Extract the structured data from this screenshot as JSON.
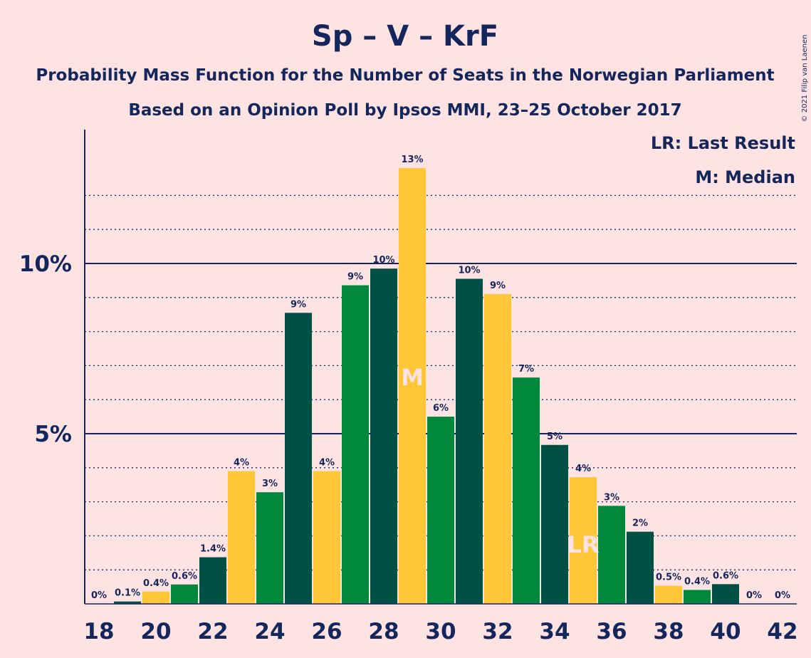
{
  "chart_data": {
    "type": "bar",
    "title": "Sp – V – KrF",
    "subtitle": "Probability Mass Function for the Number of Seats in the Norwegian Parliament",
    "subtitle2": "Based on an Opinion Poll by Ipsos MMI, 23–25 October 2017",
    "copyright": "© 2021 Filip van Laenen",
    "legend": [
      "LR: Last Result",
      "M: Median"
    ],
    "x": [
      18,
      19,
      20,
      21,
      22,
      23,
      24,
      25,
      26,
      27,
      28,
      29,
      30,
      31,
      32,
      33,
      34,
      35,
      36,
      37,
      38,
      39,
      40,
      41,
      42
    ],
    "values": [
      0,
      0.07,
      0.36,
      0.57,
      1.37,
      3.9,
      3.28,
      8.55,
      3.9,
      9.36,
      9.85,
      12.8,
      5.5,
      9.55,
      9.1,
      6.65,
      4.67,
      3.72,
      2.88,
      2.12,
      0.53,
      0.41,
      0.58,
      0,
      0
    ],
    "labels": [
      "0%",
      "0.1%",
      "0.4%",
      "0.6%",
      "1.4%",
      "4%",
      "3%",
      "9%",
      "4%",
      "9%",
      "10%",
      "13%",
      "6%",
      "10%",
      "9%",
      "7%",
      "5%",
      "4%",
      "3%",
      "2%",
      "0.5%",
      "0.4%",
      "0.6%",
      "0%",
      "0%"
    ],
    "colors": [
      "#005046",
      "#005046",
      "#ffc638",
      "#00883c",
      "#005046",
      "#ffc638",
      "#00883c",
      "#005046",
      "#ffc638",
      "#00883c",
      "#005046",
      "#ffc638",
      "#00883c",
      "#005046",
      "#ffc638",
      "#00883c",
      "#005046",
      "#ffc638",
      "#00883c",
      "#005046",
      "#ffc638",
      "#00883c",
      "#005046",
      "#ffc638",
      "#00883c"
    ],
    "xticks": [
      "18",
      "20",
      "22",
      "24",
      "26",
      "28",
      "30",
      "32",
      "34",
      "36",
      "38",
      "40",
      "42"
    ],
    "yticks": [
      {
        "value": 5,
        "label": "5%"
      },
      {
        "value": 10,
        "label": "10%"
      }
    ],
    "ylim": [
      0,
      14
    ],
    "median_seat": 29,
    "median_label": "M",
    "last_result_seat": 35,
    "last_result_label": "LR",
    "grid": "dotted every 1%, solid at 5% and 10%",
    "legend_position": "top-right"
  }
}
